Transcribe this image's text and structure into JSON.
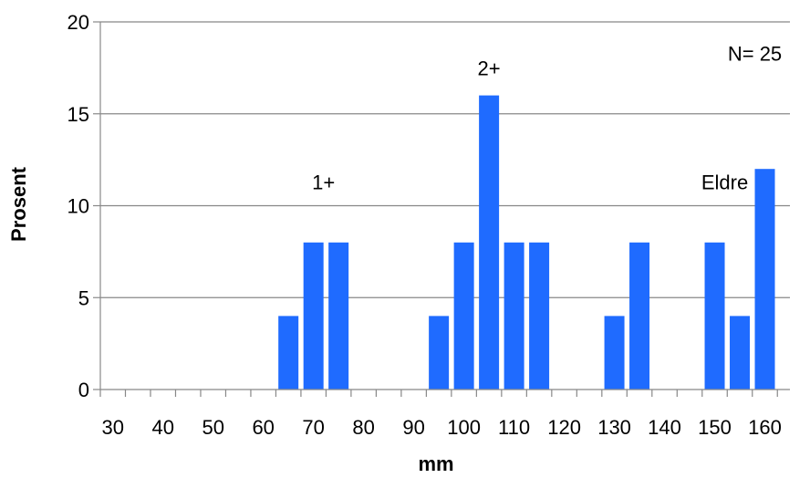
{
  "chart_data": {
    "type": "bar",
    "x_tick_labels": [
      "30",
      "40",
      "50",
      "60",
      "70",
      "80",
      "90",
      "100",
      "110",
      "120",
      "130",
      "140",
      "150",
      "160"
    ],
    "categories": [
      65,
      70,
      75,
      95,
      100,
      105,
      110,
      115,
      130,
      135,
      150,
      155,
      160
    ],
    "values": [
      4,
      8,
      8,
      4,
      8,
      16,
      8,
      8,
      4,
      8,
      8,
      4,
      12
    ],
    "xlabel": "mm",
    "ylabel": "Prosent",
    "ylim": [
      0,
      20
    ],
    "yticks": [
      0,
      5,
      10,
      15,
      20
    ],
    "grid": "horizontal",
    "bar_color": "#1F6BFF",
    "annotations": [
      {
        "text": "1+",
        "x": 72,
        "y": 10.9
      },
      {
        "text": "2+",
        "x": 105,
        "y": 17.1
      },
      {
        "text": "Eldre",
        "x": 152,
        "y": 10.9
      },
      {
        "text": "N= 25",
        "x": 158,
        "y": 17.9
      }
    ]
  }
}
